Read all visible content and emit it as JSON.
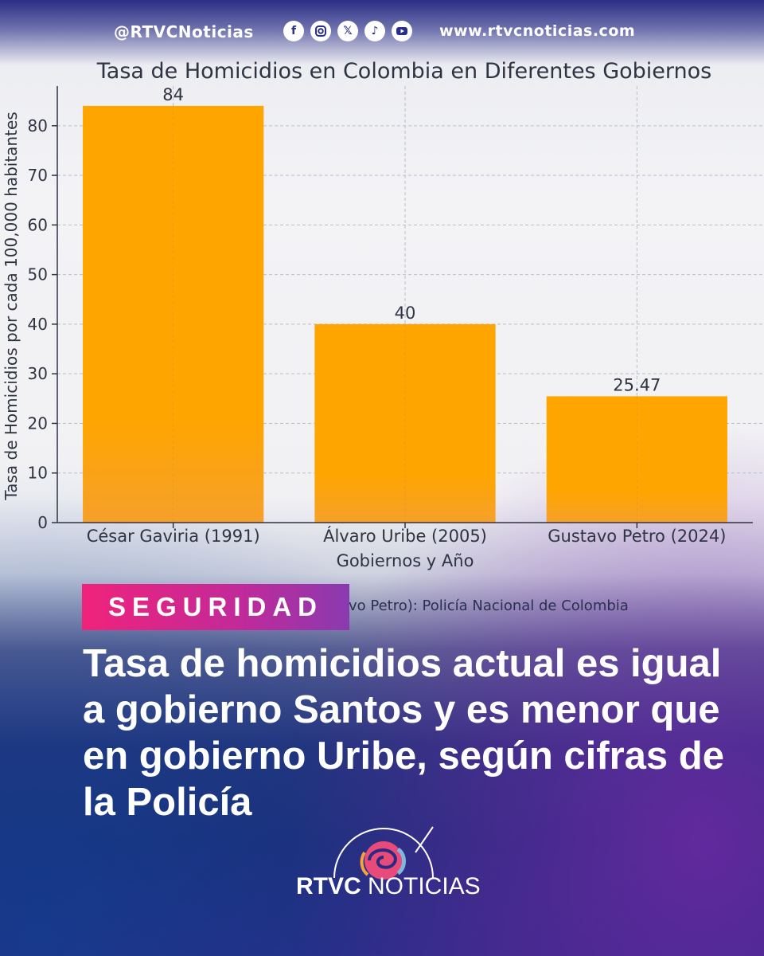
{
  "header": {
    "handle": "@RTVCNoticias",
    "social_icons": [
      "facebook-icon",
      "instagram-icon",
      "x-icon",
      "tiktok-icon",
      "youtube-icon"
    ],
    "website": "www.rtvcnoticias.com"
  },
  "chart_data": {
    "type": "bar",
    "title": "Tasa de Homicidios en Colombia en Diferentes Gobiernos",
    "xlabel": "Gobiernos y Año",
    "ylabel": "Tasa de Homicidios por cada 100,000 habitantes",
    "categories": [
      "César Gaviria (1991)",
      "Álvaro Uribe (2005)",
      "Gustavo Petro (2024)"
    ],
    "values": [
      84,
      40,
      25.47
    ],
    "data_labels": [
      "84",
      "40",
      "25.47"
    ],
    "yticks": [
      0,
      10,
      20,
      30,
      40,
      50,
      60,
      70,
      80
    ],
    "ylim": [
      0,
      88
    ],
    "grid": true,
    "bar_color": "#ffa500"
  },
  "source_note": "vo Petro): Policía Nacional de Colombia",
  "badge": {
    "label": "SEGURIDAD"
  },
  "headline": "Tasa de homicidios actual es igual a gobierno Santos y es menor que en gobierno Uribe, según cifras de la Policía",
  "logo": {
    "brand": "RTVC",
    "suffix": "NOTICIAS"
  },
  "colors": {
    "accent_pink": "#f0237b",
    "accent_purple": "#8a3ab0",
    "navy": "#26327a"
  }
}
